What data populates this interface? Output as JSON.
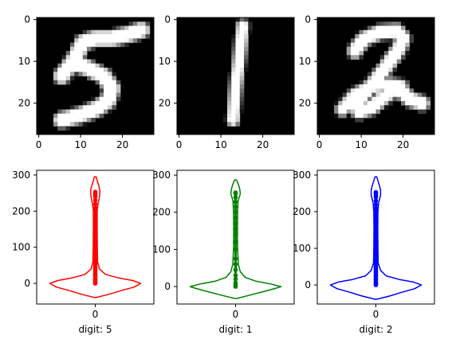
{
  "chart_data": [
    {
      "type": "image",
      "image_size": [
        28,
        28
      ],
      "xticks": [
        0,
        10,
        20
      ],
      "yticks": [
        0,
        10,
        20
      ],
      "depicts": "5"
    },
    {
      "type": "image",
      "image_size": [
        28,
        28
      ],
      "xticks": [
        0,
        10,
        20
      ],
      "yticks": [
        0,
        10,
        20
      ],
      "depicts": "1"
    },
    {
      "type": "image",
      "image_size": [
        28,
        28
      ],
      "xticks": [
        0,
        10,
        20
      ],
      "yticks": [
        0,
        10,
        20
      ],
      "depicts": "2"
    },
    {
      "type": "violin",
      "xlabel": "digit: 5",
      "color": "#ff0000",
      "category": "0",
      "ylim": [
        -57,
        313
      ],
      "yticks": [
        0,
        100,
        200,
        300
      ],
      "outline": [
        [
          -39,
          0.02
        ],
        [
          -30,
          0.3
        ],
        [
          -20,
          0.55
        ],
        [
          -10,
          0.83
        ],
        [
          0,
          0.97
        ],
        [
          8,
          0.8
        ],
        [
          15,
          0.5
        ],
        [
          25,
          0.22
        ],
        [
          40,
          0.09
        ],
        [
          60,
          0.05
        ],
        [
          100,
          0.045
        ],
        [
          150,
          0.04
        ],
        [
          200,
          0.04
        ],
        [
          220,
          0.06
        ],
        [
          240,
          0.09
        ],
        [
          255,
          0.1
        ],
        [
          268,
          0.08
        ],
        [
          280,
          0.05
        ],
        [
          295,
          0.02
        ]
      ],
      "points": [
        0,
        3,
        6,
        10,
        14,
        18,
        22,
        26,
        30,
        35,
        40,
        45,
        50,
        55,
        60,
        65,
        70,
        80,
        90,
        100,
        110,
        120,
        130,
        140,
        150,
        160,
        170,
        180,
        190,
        200,
        210,
        220,
        230,
        240,
        245,
        250,
        253
      ]
    },
    {
      "type": "violin",
      "xlabel": "digit: 1",
      "color": "#008000",
      "category": "0",
      "ylim": [
        -47,
        313
      ],
      "yticks": [
        0,
        100,
        200,
        300
      ],
      "outline": [
        [
          -32,
          0.02
        ],
        [
          -25,
          0.25
        ],
        [
          -15,
          0.55
        ],
        [
          -5,
          0.85
        ],
        [
          0,
          0.97
        ],
        [
          7,
          0.75
        ],
        [
          15,
          0.42
        ],
        [
          25,
          0.2
        ],
        [
          40,
          0.1
        ],
        [
          60,
          0.06
        ],
        [
          100,
          0.045
        ],
        [
          150,
          0.04
        ],
        [
          200,
          0.045
        ],
        [
          230,
          0.055
        ],
        [
          250,
          0.1
        ],
        [
          262,
          0.09
        ],
        [
          275,
          0.06
        ],
        [
          287,
          0.02
        ]
      ],
      "points": [
        0,
        5,
        10,
        20,
        30,
        45,
        60,
        75,
        100,
        120,
        140,
        155,
        170,
        185,
        200,
        215,
        228,
        240,
        250,
        253
      ]
    },
    {
      "type": "violin",
      "xlabel": "digit: 2",
      "color": "#0000ff",
      "category": "0",
      "ylim": [
        -52,
        313
      ],
      "yticks": [
        0,
        100,
        200,
        300
      ],
      "outline": [
        [
          -39,
          0.02
        ],
        [
          -30,
          0.3
        ],
        [
          -20,
          0.55
        ],
        [
          -10,
          0.83
        ],
        [
          0,
          0.97
        ],
        [
          8,
          0.8
        ],
        [
          15,
          0.5
        ],
        [
          25,
          0.22
        ],
        [
          40,
          0.1
        ],
        [
          60,
          0.05
        ],
        [
          100,
          0.045
        ],
        [
          150,
          0.04
        ],
        [
          200,
          0.045
        ],
        [
          225,
          0.06
        ],
        [
          245,
          0.1
        ],
        [
          258,
          0.1
        ],
        [
          270,
          0.08
        ],
        [
          282,
          0.05
        ],
        [
          295,
          0.02
        ]
      ],
      "points": [
        0,
        3,
        6,
        10,
        14,
        18,
        22,
        26,
        30,
        35,
        40,
        45,
        50,
        55,
        60,
        65,
        70,
        80,
        90,
        100,
        110,
        120,
        130,
        140,
        150,
        160,
        170,
        180,
        190,
        200,
        210,
        220,
        230,
        240,
        245,
        250,
        253
      ]
    }
  ]
}
